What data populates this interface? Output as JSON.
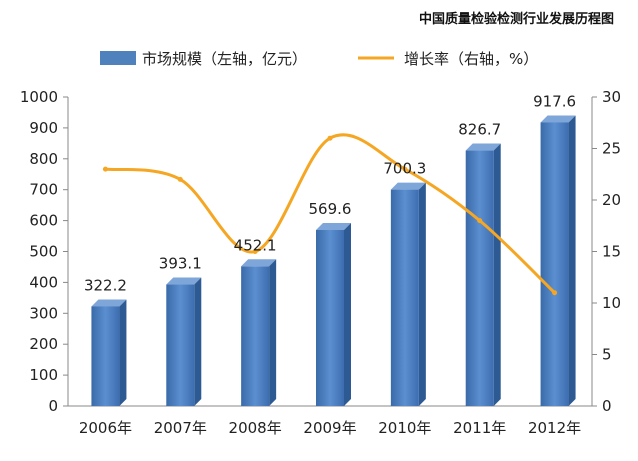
{
  "page": {
    "title": "中国质量检验检测行业发展历程图"
  },
  "chart_data": {
    "type": "bar",
    "categories": [
      "2006年",
      "2007年",
      "2008年",
      "2009年",
      "2010年",
      "2011年",
      "2012年"
    ],
    "series": [
      {
        "name": "市场规模（左轴，亿元）",
        "type": "bar",
        "axis": "left",
        "color": "#4f81bd",
        "values": [
          322.2,
          393.1,
          452.1,
          569.6,
          700.3,
          826.7,
          917.6
        ],
        "labels": [
          "322.2",
          "393.1",
          "452.1",
          "569.6",
          "700.3",
          "826.7",
          "917.6"
        ]
      },
      {
        "name": "增长率（右轴，%）",
        "type": "line",
        "axis": "right",
        "color": "#f5a623",
        "values": [
          23,
          22,
          15,
          26,
          23,
          18,
          11
        ]
      }
    ],
    "y_left": {
      "min": 0,
      "max": 1000,
      "ticks": [
        "0",
        "100",
        "200",
        "300",
        "400",
        "500",
        "600",
        "700",
        "800",
        "900",
        "1000"
      ]
    },
    "y_right": {
      "min": 0,
      "max": 30,
      "ticks": [
        "0",
        "5",
        "10",
        "15",
        "20",
        "25",
        "30"
      ]
    },
    "legend_position": "top",
    "grid": false
  }
}
